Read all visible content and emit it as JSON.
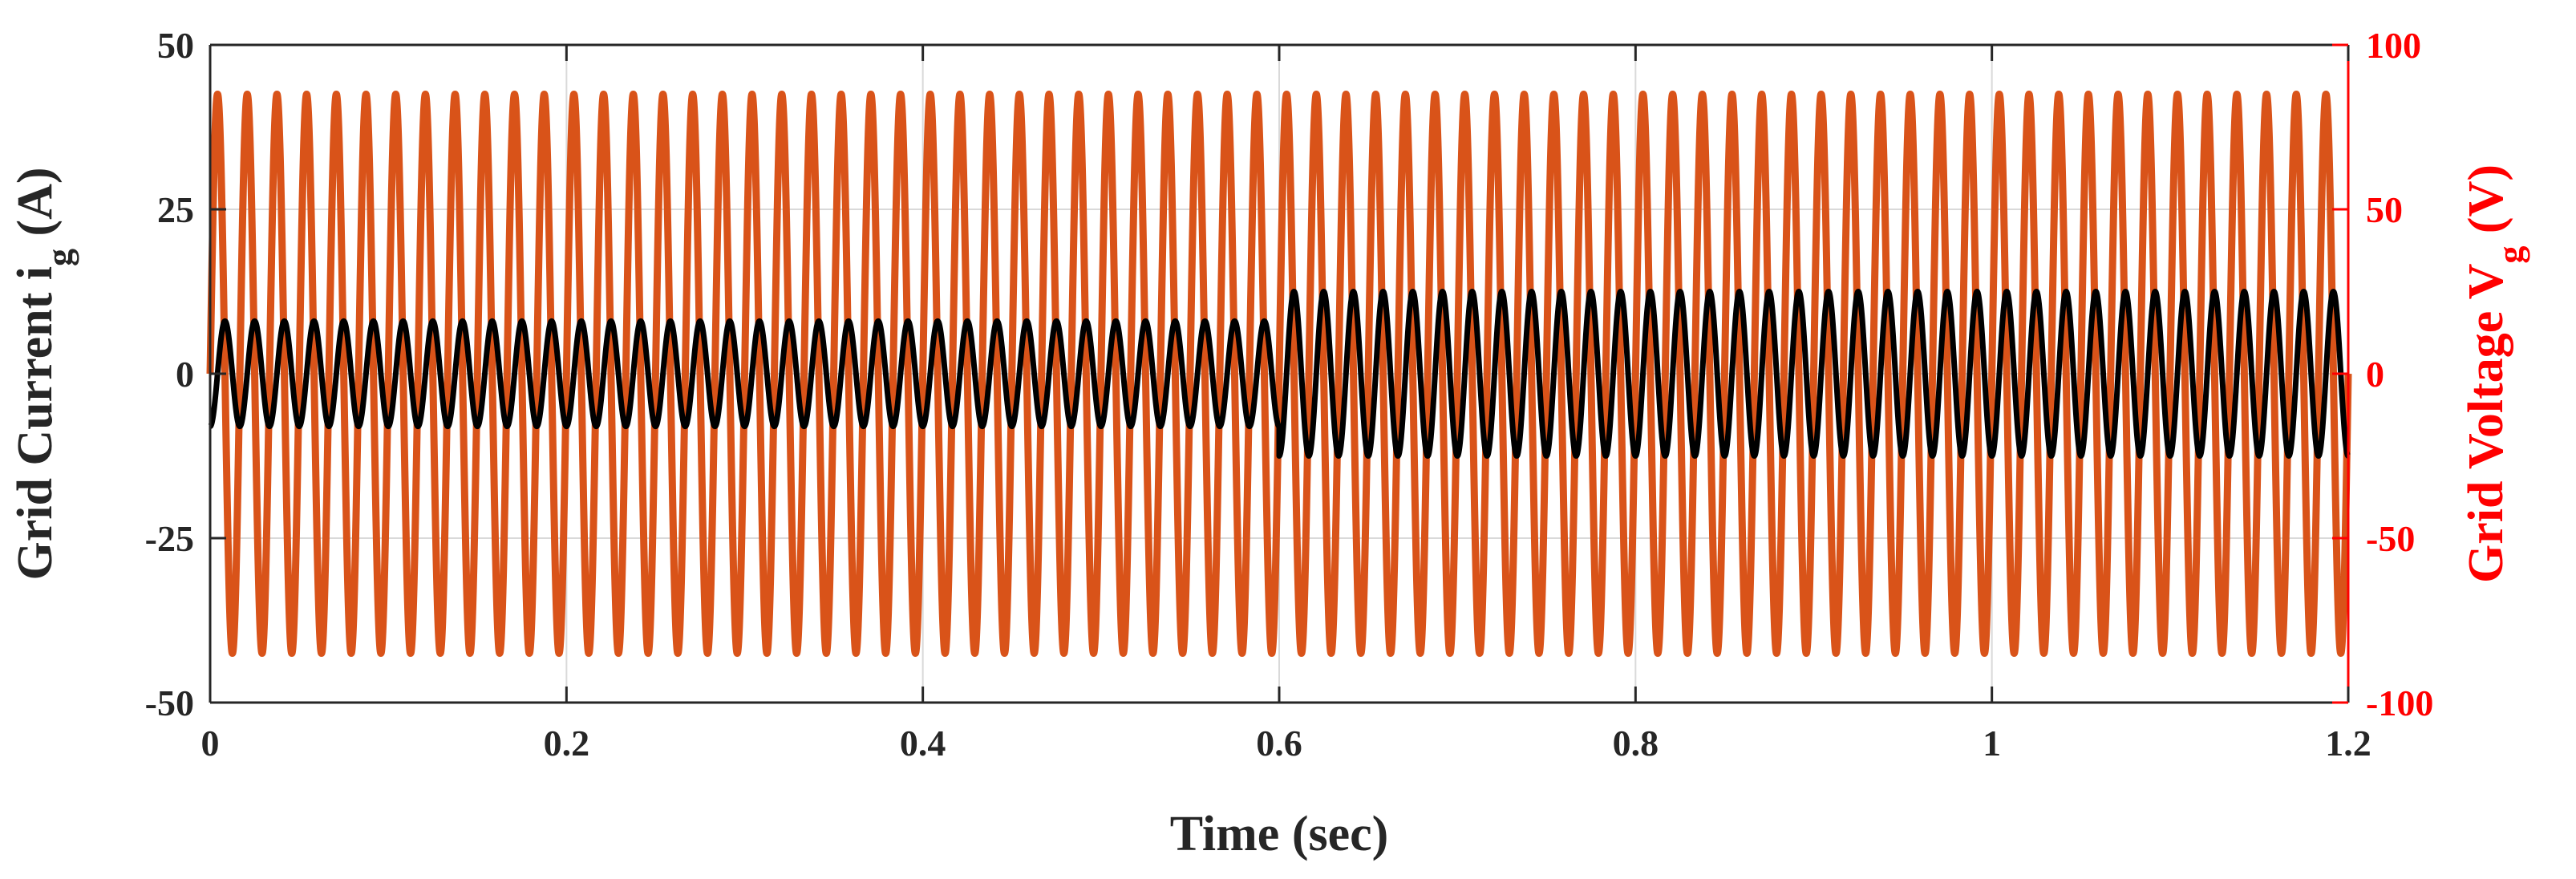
{
  "chart_data": {
    "type": "line",
    "xlabel": "Time (sec)",
    "ylabel_left_main": "Grid Current i",
    "ylabel_left_sub": "g",
    "ylabel_left_unit": " (A)",
    "ylabel_right_main": "Grid Voltage V",
    "ylabel_right_sub": "g",
    "ylabel_right_unit": " (V)",
    "xlim": [
      0,
      1.2
    ],
    "ylim_left": [
      -50,
      50
    ],
    "ylim_right": [
      -100,
      100
    ],
    "x_ticks": [
      0,
      0.2,
      0.4,
      0.6,
      0.8,
      1,
      1.2
    ],
    "x_tick_labels": [
      "0",
      "0.2",
      "0.4",
      "0.6",
      "0.8",
      "1",
      "1.2"
    ],
    "y_left_ticks": [
      50,
      25,
      0,
      -25,
      -50
    ],
    "y_left_tick_labels": [
      "50",
      "25",
      "0",
      "-25",
      "-50"
    ],
    "y_right_ticks": [
      100,
      50,
      0,
      -50,
      -100
    ],
    "y_right_tick_labels": [
      "100",
      "50",
      "0",
      "-50",
      "-100"
    ],
    "grid": true,
    "colors": {
      "current": "#000000",
      "voltage": "#D95319",
      "right_axis": "#FF0000",
      "grid": "#d9d9d9",
      "axis": "#262626"
    },
    "series": [
      {
        "axis": "right",
        "frequency_hz": 60,
        "segments": [
          {
            "t_start": 0,
            "t_end": 1.2,
            "amplitude": 85,
            "phase_deg": 0
          }
        ]
      },
      {
        "axis": "left",
        "frequency_hz": 60,
        "segments": [
          {
            "t_start": 0,
            "t_end": 0.3,
            "amplitude": 8,
            "phase_deg": -90
          },
          {
            "t_start": 0.3,
            "t_end": 0.6,
            "amplitude": 8,
            "phase_deg": -90
          },
          {
            "t_start": 0.6,
            "t_end": 0.9,
            "amplitude": 12.5,
            "phase_deg": -90
          },
          {
            "t_start": 0.9,
            "t_end": 1.2,
            "amplitude": 12.5,
            "phase_deg": -90
          }
        ]
      }
    ]
  }
}
